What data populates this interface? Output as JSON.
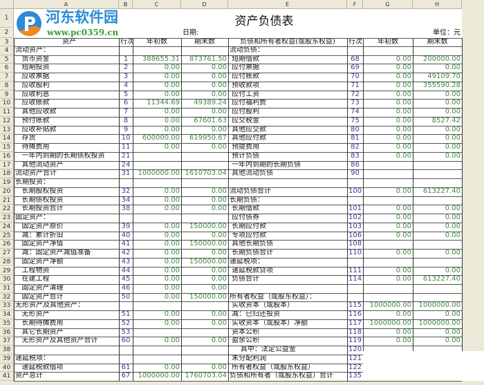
{
  "watermark": {
    "name": "河东软件园",
    "url": "www.pc0359.cn"
  },
  "columns": [
    "A",
    "B",
    "C",
    "D",
    "E",
    "F",
    "G",
    "H"
  ],
  "title": "资产负债表",
  "date_label": "日期:",
  "unit_label": "单位：元",
  "headers": [
    "资产",
    "行次",
    "年初数",
    "期末数",
    "负债和所有者权益(或股东权益)",
    "行次",
    "年初数",
    "期末数"
  ],
  "colors": {
    "number": "#3f8a3f",
    "line_no": "#3a3a9a",
    "chrome": "#ece9d8"
  },
  "rows": [
    {
      "n": "4",
      "a": "流动资产：",
      "b": "",
      "c": "",
      "d": "",
      "e": "流动负债：",
      "f": "",
      "g": "",
      "h": ""
    },
    {
      "n": "5",
      "a": "   货币资金",
      "b": "1",
      "c": "388655.31",
      "d": "873761.50",
      "e": " 短期借款",
      "f": "68",
      "g": "0.00",
      "h": "200000.00"
    },
    {
      "n": "6",
      "a": "   短期投资",
      "b": "2",
      "c": "0.00",
      "d": "0.00",
      "e": " 应付票据",
      "f": "69",
      "g": "0.00",
      "h": "0.00"
    },
    {
      "n": "7",
      "a": "   应收票据",
      "b": "3",
      "c": "0.00",
      "d": "0.00",
      "e": " 应付账款",
      "f": "70",
      "g": "0.00",
      "h": "49109.70"
    },
    {
      "n": "8",
      "a": "   应收股利",
      "b": "4",
      "c": "0.00",
      "d": "0.00",
      "e": " 预收款项",
      "f": "71",
      "g": "0.00",
      "h": "355590.28"
    },
    {
      "n": "9",
      "a": "   应收利息",
      "b": "5",
      "c": "0.00",
      "d": "0.00",
      "e": " 应付工资",
      "f": "72",
      "g": "0.00",
      "h": "0.00"
    },
    {
      "n": "10",
      "a": "   应收账款",
      "b": "6",
      "c": "11344.69",
      "d": "49389.24",
      "e": " 应付福利费",
      "f": "73",
      "g": "0.00",
      "h": "0.00"
    },
    {
      "n": "11",
      "a": "   其他应收款",
      "b": "7",
      "c": "0.00",
      "d": "0.00",
      "e": " 应付股利",
      "f": "74",
      "g": "0.00",
      "h": "0.00"
    },
    {
      "n": "12",
      "a": "   预付账款",
      "b": "8",
      "c": "0.00",
      "d": "67601.63",
      "e": " 应交税金",
      "f": "75",
      "g": "0.00",
      "h": "8527.42"
    },
    {
      "n": "13",
      "a": "   应收补贴款",
      "b": "9",
      "c": "0.00",
      "d": "0.00",
      "e": " 其他应交款",
      "f": "80",
      "g": "0.00",
      "h": "0.00"
    },
    {
      "n": "14",
      "a": "   存货",
      "b": "10",
      "c": "600000.00",
      "d": "619950.67",
      "e": " 其他应付款",
      "f": "81",
      "g": "0.00",
      "h": "0.00"
    },
    {
      "n": "15",
      "a": "   待摊费用",
      "b": "11",
      "c": "0.00",
      "d": "0.00",
      "e": " 预提费用",
      "f": "82",
      "g": "0.00",
      "h": "0.00"
    },
    {
      "n": "16",
      "a": "   一年内到期的长期债权投资",
      "b": "21",
      "c": "",
      "d": "",
      "e": " 预计负债",
      "f": "83",
      "g": "0.00",
      "h": "0.00"
    },
    {
      "n": "17",
      "a": "   其他流动资产",
      "b": "24",
      "c": "",
      "d": "",
      "e": " 一年内到期的长期负债",
      "f": "86",
      "g": "",
      "h": ""
    },
    {
      "n": "18",
      "a": "流动资产合计",
      "b": "31",
      "c": "1000000.00",
      "d": "1610703.04",
      "e": " 其他流动负债",
      "f": "90",
      "g": "",
      "h": ""
    },
    {
      "n": "19",
      "a": "长期投资：",
      "b": "",
      "c": "",
      "d": "",
      "e": "",
      "f": "",
      "g": "",
      "h": ""
    },
    {
      "n": "20",
      "a": "   长期股权投资",
      "b": "32",
      "c": "0.00",
      "d": "0.00",
      "e": "流动负债合计",
      "f": "100",
      "g": "0.00",
      "h": "613227.40"
    },
    {
      "n": "21",
      "a": "   长期债权投资",
      "b": "34",
      "c": "0.00",
      "d": "0.00",
      "e": "长期负债：",
      "f": "",
      "g": "",
      "h": ""
    },
    {
      "n": "22",
      "a": "   长期投资合计",
      "b": "38",
      "c": "0.00",
      "d": "0.00",
      "e": " 长期借款",
      "f": "101",
      "g": "0.00",
      "h": "0.00"
    },
    {
      "n": "23",
      "a": "固定资产：",
      "b": "",
      "c": "",
      "d": "",
      "e": " 应付债券",
      "f": "102",
      "g": "0.00",
      "h": "0.00"
    },
    {
      "n": "24",
      "a": "   固定资产原价",
      "b": "39",
      "c": "0.00",
      "d": "150000.00",
      "e": " 长期应付款",
      "f": "103",
      "g": "0.00",
      "h": "0.00"
    },
    {
      "n": "25",
      "a": "   减：累计折旧",
      "b": "40",
      "c": "0.00",
      "d": "0.00",
      "e": " 专项应付款",
      "f": "106",
      "g": "0.00",
      "h": "0.00"
    },
    {
      "n": "26",
      "a": "   固定资产净值",
      "b": "41",
      "c": "0.00",
      "d": "150000.00",
      "e": " 其他长期负债",
      "f": "108",
      "g": "",
      "h": ""
    },
    {
      "n": "27",
      "a": "   减：固定资产减值准备",
      "b": "42",
      "c": "0.00",
      "d": "0.00",
      "e": " 长期负债合计",
      "f": "110",
      "g": "0.00",
      "h": "0.00"
    },
    {
      "n": "28",
      "a": "   固定资产净额",
      "b": "43",
      "c": "0.00",
      "d": "150000.00",
      "e": "递延税项：",
      "f": "",
      "g": "",
      "h": ""
    },
    {
      "n": "29",
      "a": "   工程物资",
      "b": "44",
      "c": "0.00",
      "d": "0.00",
      "e": " 递延税款贷项",
      "f": "111",
      "g": "0.00",
      "h": "0.00"
    },
    {
      "n": "30",
      "a": "   在建工程",
      "b": "45",
      "c": "0.00",
      "d": "0.00",
      "e": " 负债合计",
      "f": "114",
      "g": "0.00",
      "h": "613227.40"
    },
    {
      "n": "31",
      "a": "   固定资产清理",
      "b": "46",
      "c": "0.00",
      "d": "0.00",
      "e": "",
      "f": "",
      "g": "",
      "h": ""
    },
    {
      "n": "32",
      "a": "   固定资产合计",
      "b": "50",
      "c": "0.00",
      "d": "150000.00",
      "e": "所有者权益（或股东权益）：",
      "f": "",
      "g": "",
      "h": ""
    },
    {
      "n": "33",
      "a": "无形资产及其他资产：",
      "b": "",
      "c": "",
      "d": "",
      "e": " 实收资本（或股本）",
      "f": "115",
      "g": "1000000.00",
      "h": "1000000.00"
    },
    {
      "n": "34",
      "a": "   无形资产",
      "b": "51",
      "c": "0.00",
      "d": "0.00",
      "e": " 减：已归还投资",
      "f": "116",
      "g": "0.00",
      "h": "0.00"
    },
    {
      "n": "35",
      "a": "   长期待摊费用",
      "b": "52",
      "c": "0.00",
      "d": "0.00",
      "e": " 实收资本（或股本）净额",
      "f": "117",
      "g": "1000000.00",
      "h": "1000000.00"
    },
    {
      "n": "36",
      "a": "   其它长期资产",
      "b": "53",
      "c": "",
      "d": "",
      "e": " 资本公积",
      "f": "118",
      "g": "0.00",
      "h": "0.00"
    },
    {
      "n": "37",
      "a": "   无形资产及其他资产合计",
      "b": "60",
      "c": "0.00",
      "d": "0.00",
      "e": " 盈余公积",
      "f": "119",
      "g": "0.00",
      "h": "0.00"
    },
    {
      "n": "38",
      "a": "",
      "b": "",
      "c": "",
      "d": "",
      "e": "     其中：法定公益金",
      "f": "120",
      "g": "",
      "h": ""
    },
    {
      "n": "39",
      "a": "递延税项：",
      "b": "",
      "c": "",
      "d": "",
      "e": " 未分配利润",
      "f": "121",
      "g": "",
      "h": ""
    },
    {
      "n": "40",
      "a": "   递延税款借项",
      "b": "61",
      "c": "0.00",
      "d": "0.00",
      "e": " 所有者权益（或股东权益）",
      "f": "122",
      "g": "",
      "h": ""
    },
    {
      "n": "41",
      "a": "资产总计",
      "b": "67",
      "c": "1000000.00",
      "d": "1760703.04",
      "e": "负债和所有者（或股东权益）合计",
      "f": "135",
      "g": "",
      "h": ""
    }
  ]
}
